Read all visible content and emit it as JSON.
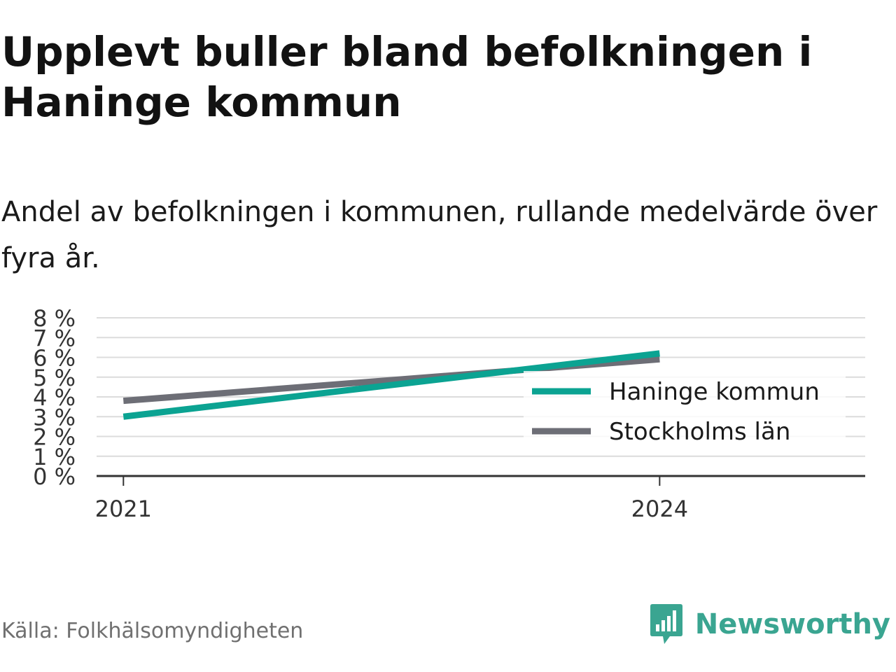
{
  "title": "Upplevt buller bland befolkningen i Haninge kommun",
  "subtitle": "Andel av befolkningen i kommunen, rullande medelvärde över fyra år.",
  "source": "Källa: Folkhälsomyndigheten",
  "brand": {
    "name": "Newsworthy",
    "icon": "newsworthy-logo-icon",
    "color": "#3aa591"
  },
  "chart_data": {
    "type": "line",
    "title": "",
    "xlabel": "",
    "ylabel": "",
    "x": [
      "2021",
      "2024"
    ],
    "x_numeric": [
      2021,
      2024
    ],
    "xlim": [
      2020.85,
      2025.15
    ],
    "ylim": [
      0,
      8
    ],
    "yticks": [
      0,
      1,
      2,
      3,
      4,
      5,
      6,
      7,
      8
    ],
    "ytick_labels": [
      "0 %",
      "1 %",
      "2 %",
      "3 %",
      "4 %",
      "5 %",
      "6 %",
      "7 %",
      "8 %"
    ],
    "xtick_labels": [
      "2021",
      "2024"
    ],
    "grid": true,
    "legend_position": "right",
    "series": [
      {
        "name": "Haninge kommun",
        "color": "#0ba392",
        "x": [
          2021,
          2024
        ],
        "values": [
          3.0,
          6.2
        ]
      },
      {
        "name": "Stockholms län",
        "color": "#6d6e76",
        "x": [
          2021,
          2024
        ],
        "values": [
          3.8,
          5.9
        ]
      }
    ]
  }
}
